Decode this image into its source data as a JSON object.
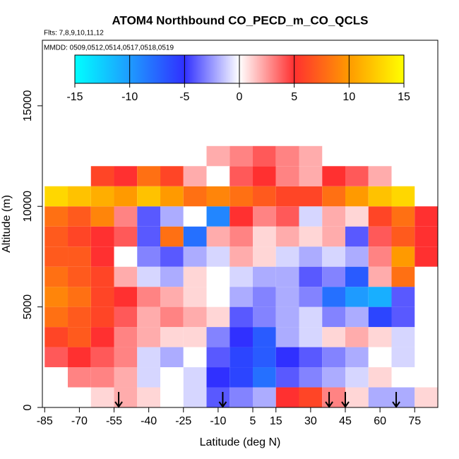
{
  "chart_data": {
    "type": "heatmap",
    "title": "ATOM4 Northbound CO_PECD_m_CO_QCLS",
    "subtitle": "Flts: 7,8,9,10,11,12",
    "annotation": "MMDD: 0509,0512,0514,0517,0518,0519",
    "x_label": "Latitude (deg N)",
    "y_label": "Altitude (m)",
    "xlim": [
      -86,
      85
    ],
    "xticks": [
      -85,
      -70,
      -55,
      -40,
      -25,
      -10,
      5,
      15,
      30,
      45,
      60,
      75
    ],
    "ylim": [
      0,
      18260
    ],
    "yticks": [
      0,
      5000,
      10000,
      15000
    ],
    "lat_bins": [
      -85,
      -75,
      -65,
      -55,
      -45,
      -35,
      -25,
      -15,
      -5,
      5,
      15,
      25,
      35,
      45,
      55,
      65,
      75,
      85
    ],
    "alt_bins": [
      0,
      1000,
      2000,
      3000,
      4000,
      5000,
      6000,
      7000,
      8000,
      9000,
      10000,
      11000,
      12000,
      13000
    ],
    "z": [
      [
        null,
        null,
        1,
        2,
        1,
        0,
        -1,
        -4,
        -3,
        -2,
        5,
        6,
        3,
        1,
        -2,
        -2,
        1
      ],
      [
        null,
        3,
        3,
        2,
        -1,
        0,
        -1,
        -5,
        -6,
        -8,
        -4,
        -3,
        -2,
        -1,
        1,
        0,
        null
      ],
      [
        4,
        5,
        4,
        3,
        -1,
        -2,
        0,
        -4,
        -6,
        -7,
        -5,
        -4,
        -3,
        -2,
        0,
        -1,
        null
      ],
      [
        6,
        7,
        5,
        3,
        2,
        1,
        1,
        -3,
        -5,
        -7,
        -2,
        -1,
        1,
        2,
        1,
        -1,
        null
      ],
      [
        8,
        7,
        6,
        4,
        2,
        3,
        2,
        1,
        -4,
        -3,
        -2,
        -1,
        -3,
        -2,
        -6,
        -4,
        null
      ],
      [
        9,
        8,
        6,
        5,
        3,
        2,
        1,
        0,
        -2,
        -3,
        -2,
        -3,
        -8,
        -10,
        -11,
        -4,
        null
      ],
      [
        8,
        7,
        6,
        2,
        -1,
        -2,
        1,
        0,
        -1,
        -2,
        -2,
        -4,
        -3,
        -7,
        2,
        8,
        null
      ],
      [
        7,
        7,
        5,
        0,
        -3,
        -4,
        -2,
        -1,
        2,
        1,
        -1,
        -2,
        -1,
        -2,
        3,
        10,
        5
      ],
      [
        7,
        6,
        5,
        4,
        -4,
        8,
        -8,
        2,
        3,
        1,
        2,
        1,
        2,
        -4,
        4,
        7,
        5
      ],
      [
        8,
        7,
        9,
        3,
        -4,
        -2,
        0,
        -9,
        5,
        3,
        4,
        -1,
        2,
        1,
        6,
        8,
        5
      ],
      [
        13,
        12,
        11,
        10,
        12,
        10,
        8,
        9,
        8,
        7,
        6,
        6,
        8,
        10,
        12,
        13,
        null
      ],
      [
        null,
        null,
        6,
        5,
        8,
        6,
        2,
        0,
        4,
        5,
        3,
        2,
        5,
        4,
        2,
        null,
        null
      ],
      [
        null,
        null,
        null,
        null,
        null,
        null,
        null,
        2,
        3,
        4,
        3,
        2,
        null,
        null,
        null,
        null,
        null
      ]
    ],
    "colorbar": {
      "ticks": [
        -15,
        -10,
        -5,
        0,
        5,
        10,
        15
      ],
      "colors": [
        "#00ffff",
        "#1e9bff",
        "#3030ff",
        "#ffffff",
        "#ff3030",
        "#ff9a00",
        "#ffff00"
      ]
    },
    "flight_markers": [
      -53,
      -8,
      38,
      45,
      67
    ]
  }
}
